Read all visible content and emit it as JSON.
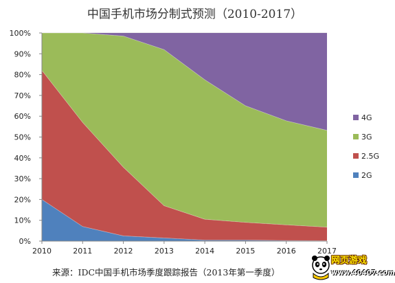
{
  "chart_data": {
    "type": "area",
    "stacked": true,
    "title": "中国手机市场分制式预测（2010-2017）",
    "source": "来源：IDC中国手机市场季度跟踪报告（2013年第一季度）",
    "x": [
      "2010",
      "2011",
      "2012",
      "2013",
      "2014",
      "2015",
      "2016",
      "2017"
    ],
    "y_ticks": [
      "0%",
      "10%",
      "20%",
      "30%",
      "40%",
      "50%",
      "60%",
      "70%",
      "80%",
      "90%",
      "100%"
    ],
    "ylim": [
      0,
      100
    ],
    "legend_position": "right",
    "series": [
      {
        "name": "2G",
        "color": "#4f81bd",
        "values": [
          20,
          7,
          2.5,
          1.5,
          0.5,
          0.5,
          0.3,
          0.2
        ]
      },
      {
        "name": "2.5G",
        "color": "#c0504d",
        "values": [
          62,
          50,
          33,
          15.5,
          10,
          8.5,
          7.5,
          6.5
        ]
      },
      {
        "name": "3G",
        "color": "#9bbb59",
        "values": [
          18,
          43,
          63,
          75,
          67,
          56,
          50,
          46.5
        ]
      },
      {
        "name": "4G",
        "color": "#8064a2",
        "values": [
          0,
          0,
          1.5,
          8,
          22.5,
          35,
          42.2,
          46.8
        ]
      }
    ],
    "legend_order": [
      "4G",
      "3G",
      "2.5G",
      "2G"
    ]
  },
  "watermark": {
    "title": "网页游戏",
    "url": "www.40407.com"
  }
}
